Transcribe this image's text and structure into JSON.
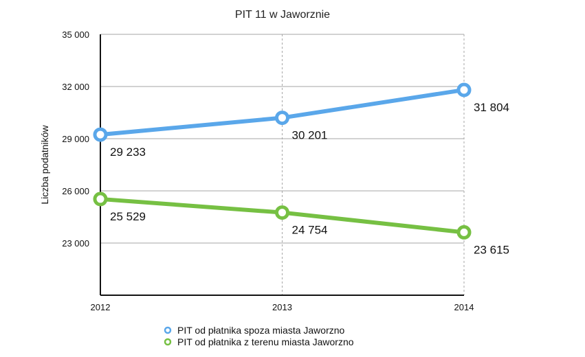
{
  "chart_data": {
    "type": "line",
    "title": "PIT 11 w Jaworznie",
    "xlabel": "",
    "ylabel": "Liczba podatników",
    "x": [
      "2012",
      "2013",
      "2014"
    ],
    "yticks": [
      "23 000",
      "26 000",
      "29 000",
      "32 000",
      "35 000"
    ],
    "ylim": [
      20000,
      35000
    ],
    "grid": true,
    "legend_position": "bottom",
    "series": [
      {
        "name": "PIT od płatnika spoza miasta Jaworzno",
        "color": "#5aa7ea",
        "values": [
          29233,
          30201,
          31804
        ],
        "labels": [
          "29 233",
          "30 201",
          "31 804"
        ]
      },
      {
        "name": "PIT od płatnika z terenu miasta Jaworzno",
        "color": "#76c043",
        "values": [
          25529,
          24754,
          23615
        ],
        "labels": [
          "25 529",
          "24 754",
          "23 615"
        ]
      }
    ]
  }
}
